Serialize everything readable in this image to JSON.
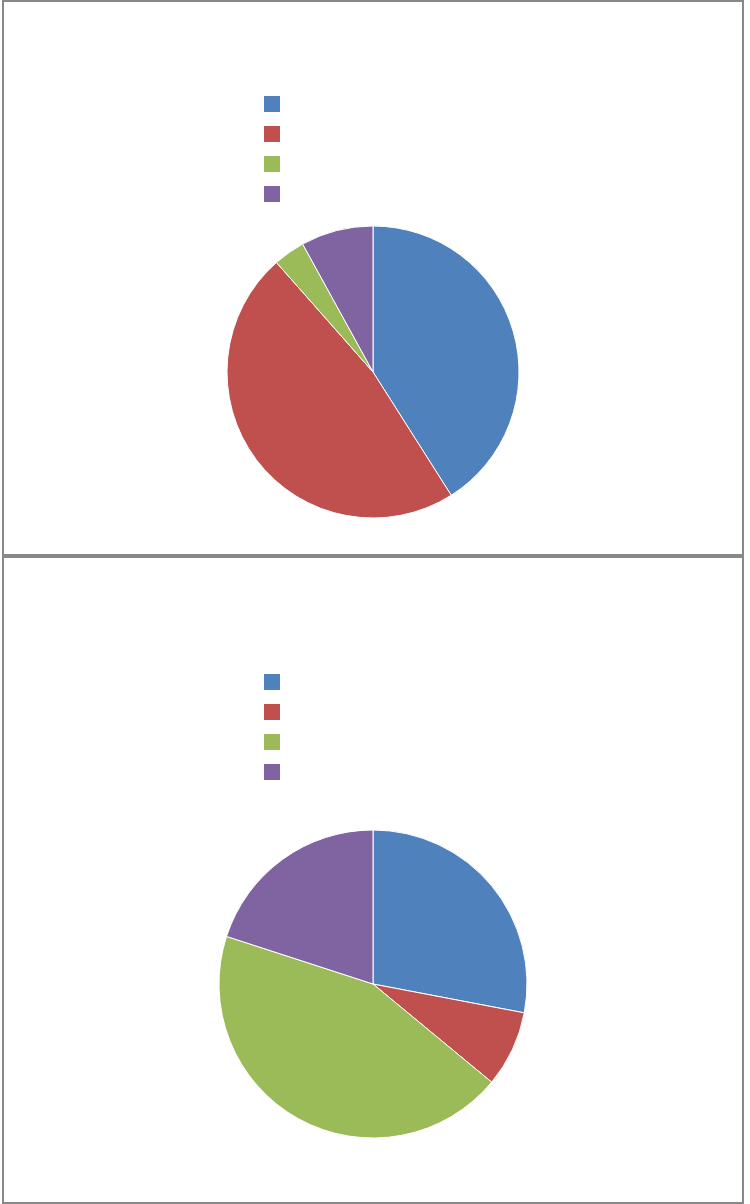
{
  "chart_data": [
    {
      "type": "pie",
      "categories": [
        null,
        null,
        null,
        null
      ],
      "values": [
        41,
        47.5,
        3.5,
        8
      ],
      "colors": [
        "#4f81bd",
        "#c0504d",
        "#9bbb59",
        "#8064a2"
      ]
    },
    {
      "type": "pie",
      "categories": [
        null,
        null,
        null,
        null
      ],
      "values": [
        28,
        8,
        44,
        20
      ],
      "colors": [
        "#4f81bd",
        "#c0504d",
        "#9bbb59",
        "#8064a2"
      ]
    }
  ]
}
